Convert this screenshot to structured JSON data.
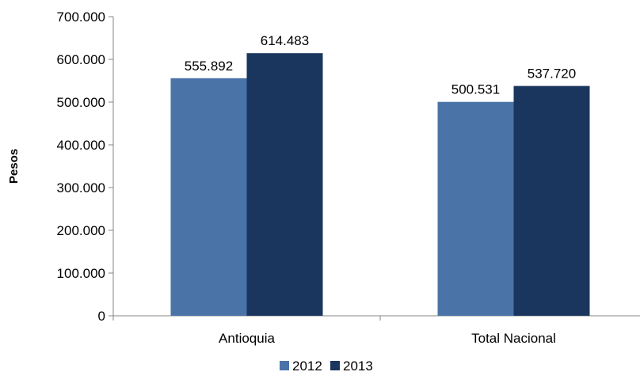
{
  "chart_data": {
    "type": "bar",
    "title": "",
    "xlabel": "",
    "ylabel": "Pesos",
    "ylim": [
      0,
      700000
    ],
    "yticks": [
      0,
      100000,
      200000,
      300000,
      400000,
      500000,
      600000,
      700000
    ],
    "ytick_labels": [
      "0",
      "100.000",
      "200.000",
      "300.000",
      "400.000",
      "500.000",
      "600.000",
      "700.000"
    ],
    "categories": [
      "Antioquia",
      "Total Nacional"
    ],
    "series": [
      {
        "name": "2012",
        "color": "#4a74a8",
        "values": [
          555892,
          500531
        ],
        "labels": [
          "555.892",
          "500.531"
        ]
      },
      {
        "name": "2013",
        "color": "#1b365e",
        "values": [
          614483,
          537720
        ],
        "labels": [
          "614.483",
          "537.720"
        ]
      }
    ],
    "grid": false,
    "legend": "bottom"
  }
}
